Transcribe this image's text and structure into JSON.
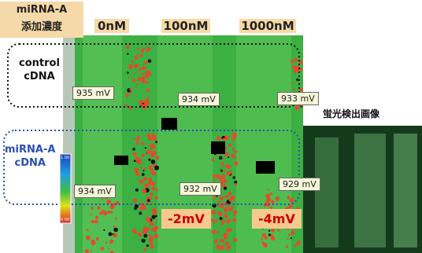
{
  "header": {
    "title_lines": [
      "miRNA-A",
      "添加濃度"
    ],
    "concentrations": [
      "0nM",
      "100nM",
      "1000nM"
    ]
  },
  "rows": [
    {
      "label_lines": [
        "control",
        "cDNA"
      ],
      "readings": [
        "935 mV",
        "934 mV",
        "933 mV"
      ]
    },
    {
      "label_lines": [
        "miRNA-A",
        "cDNA"
      ],
      "readings": [
        "934 mV",
        "932 mV",
        "929 mV"
      ]
    }
  ],
  "differences": [
    "-2mV",
    "-4mV"
  ],
  "colorbar": {
    "top": "1.00",
    "bottom": "0.00"
  },
  "fluorescence_title": "蛍光検出画像"
}
